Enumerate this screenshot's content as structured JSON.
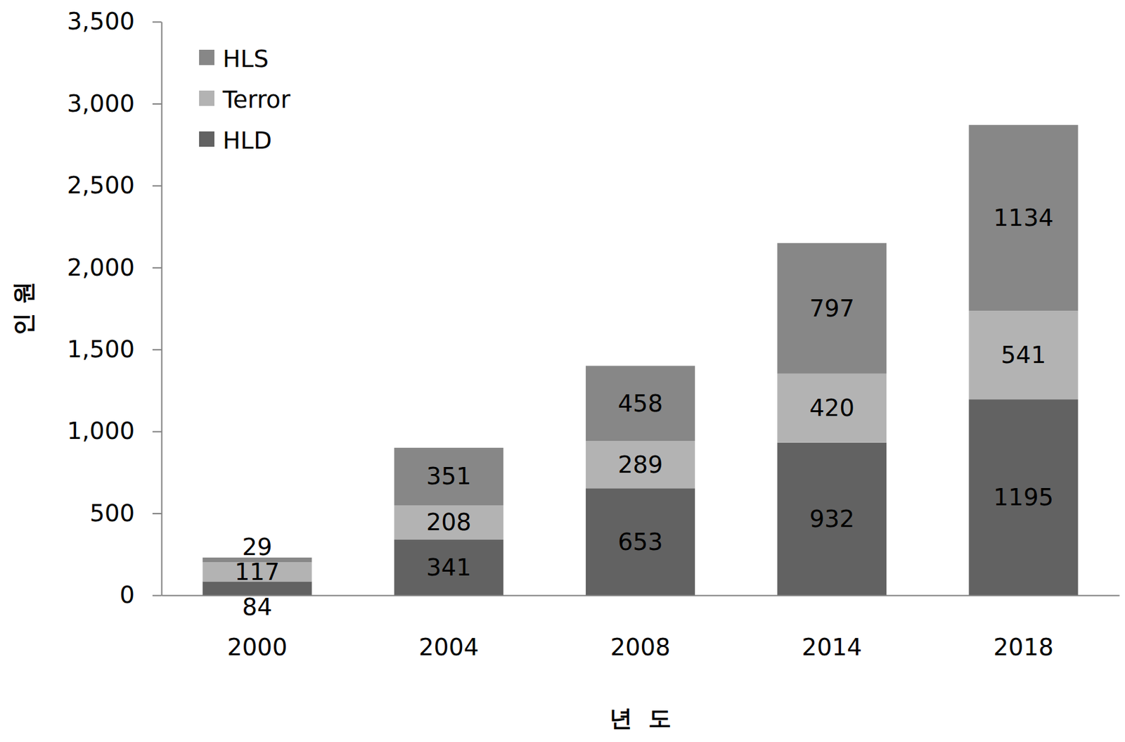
{
  "chart_data": {
    "type": "bar",
    "stacked": true,
    "data_labels": true,
    "legend": "top-left",
    "grid": false,
    "x_label": "년  도",
    "y_label": "인 원",
    "categories": [
      "2000",
      "2004",
      "2008",
      "2014",
      "2018"
    ],
    "series": [
      {
        "name": "HLD",
        "color": "#626262",
        "values": [
          84,
          341,
          653,
          932,
          1195
        ]
      },
      {
        "name": "Terror",
        "color": "#b3b3b3",
        "values": [
          117,
          208,
          289,
          420,
          541
        ]
      },
      {
        "name": "HLS",
        "color": "#878787",
        "values": [
          29,
          351,
          458,
          797,
          1134
        ]
      }
    ],
    "ylim": [
      0,
      3500
    ],
    "yticks": [
      0,
      500,
      {
        "value": 1000,
        "label": "1,000"
      },
      {
        "value": 1500,
        "label": "1,500"
      },
      {
        "value": 2000,
        "label": "2,000"
      },
      {
        "value": 2500,
        "label": "2,500"
      },
      {
        "value": 3000,
        "label": "3,000"
      },
      {
        "value": 3500,
        "label": "3,500"
      }
    ]
  }
}
